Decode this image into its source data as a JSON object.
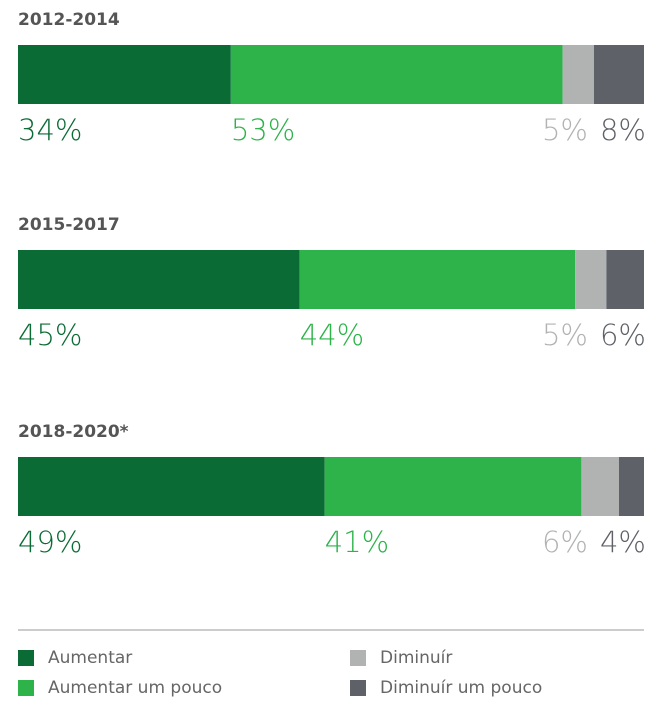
{
  "chart_data": {
    "type": "stacked_barh",
    "categories": [
      "2012-2014",
      "2015-2017",
      "2018-2020*"
    ],
    "series": [
      {
        "name": "Aumentar",
        "color": "#0b6b35",
        "values": [
          34,
          45,
          49
        ],
        "value_labels": [
          "34%",
          "45%",
          "49%"
        ]
      },
      {
        "name": "Aumentar um pouco",
        "color": "#2db34a",
        "values": [
          53,
          44,
          41
        ],
        "value_labels": [
          "53%",
          "44%",
          "41%"
        ]
      },
      {
        "name": "Diminuír",
        "color": "#b1b3b3",
        "values": [
          5,
          5,
          6
        ],
        "value_labels": [
          "5%",
          "5%",
          "6%"
        ]
      },
      {
        "name": "Diminuír um pouco",
        "color": "#5f6168",
        "values": [
          8,
          6,
          4
        ],
        "value_labels": [
          "8%",
          "6%",
          "4%"
        ]
      }
    ],
    "legend": "bottom"
  }
}
